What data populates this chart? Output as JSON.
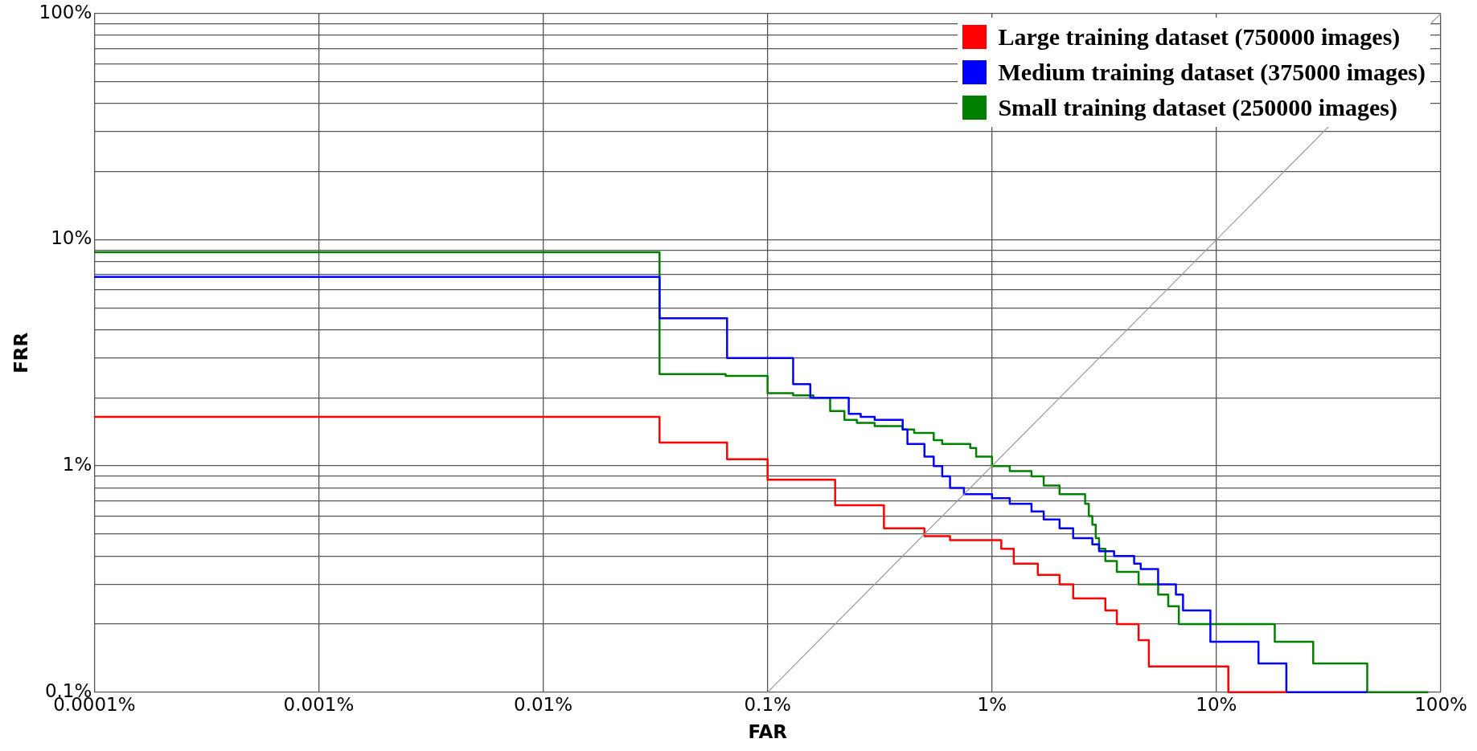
{
  "chart_data": {
    "type": "step",
    "xlabel": "FAR",
    "ylabel": "FRR",
    "log": "xy",
    "grid": true,
    "legend": "top right",
    "marker": "none",
    "line_style": "solid",
    "xlim": [
      0.0001,
      100
    ],
    "ylim": [
      0.1,
      100
    ],
    "xticks": [
      {
        "value": 0.0001,
        "label": "0.0001%"
      },
      {
        "value": 0.001,
        "label": "0.001%"
      },
      {
        "value": 0.01,
        "label": "0.01%"
      },
      {
        "value": 0.1,
        "label": "0.1%"
      },
      {
        "value": 1,
        "label": "1%"
      },
      {
        "value": 10,
        "label": "10%"
      },
      {
        "value": 100,
        "label": "100%"
      }
    ],
    "yticks": [
      {
        "value": 0.1,
        "label": "0.1%"
      },
      {
        "value": 0.2,
        "label": null
      },
      {
        "value": 0.3,
        "label": null
      },
      {
        "value": 0.4,
        "label": null
      },
      {
        "value": 0.5,
        "label": null
      },
      {
        "value": 0.6,
        "label": null
      },
      {
        "value": 0.7,
        "label": null
      },
      {
        "value": 0.8,
        "label": null
      },
      {
        "value": 0.9,
        "label": null
      },
      {
        "value": 1,
        "label": "1%"
      },
      {
        "value": 2,
        "label": null
      },
      {
        "value": 3,
        "label": null
      },
      {
        "value": 4,
        "label": null
      },
      {
        "value": 5,
        "label": null
      },
      {
        "value": 6,
        "label": null
      },
      {
        "value": 7,
        "label": null
      },
      {
        "value": 8,
        "label": null
      },
      {
        "value": 9,
        "label": null
      },
      {
        "value": 10,
        "label": "10%"
      },
      {
        "value": 20,
        "label": null
      },
      {
        "value": 30,
        "label": null
      },
      {
        "value": 40,
        "label": null
      },
      {
        "value": 50,
        "label": null
      },
      {
        "value": 60,
        "label": null
      },
      {
        "value": 70,
        "label": null
      },
      {
        "value": 80,
        "label": null
      },
      {
        "value": 90,
        "label": null
      },
      {
        "value": 100,
        "label": "100%"
      }
    ],
    "series": [
      {
        "type": "line",
        "color": "#999999",
        "x": [
          0.1,
          100
        ],
        "values": [
          0.1,
          100
        ]
      },
      {
        "name": "Large training dataset (750000 images)",
        "color": "#ff0000",
        "x": [
          0.0001,
          0.033,
          0.066,
          0.1,
          0.2,
          0.33,
          0.5,
          0.65,
          1.1,
          1.25,
          1.6,
          2.0,
          2.3,
          3.2,
          3.6,
          4.5,
          5.0,
          11.3,
          20.5
        ],
        "values": [
          1.65,
          1.27,
          1.07,
          0.87,
          0.67,
          0.53,
          0.49,
          0.47,
          0.43,
          0.37,
          0.33,
          0.3,
          0.26,
          0.23,
          0.2,
          0.17,
          0.13,
          0.1,
          0.1
        ]
      },
      {
        "name": "Medium training dataset (375000 images)",
        "color": "#0000ff",
        "x": [
          0.0001,
          0.033,
          0.066,
          0.13,
          0.155,
          0.23,
          0.26,
          0.3,
          0.4,
          0.42,
          0.5,
          0.55,
          0.6,
          0.65,
          0.75,
          1.0,
          1.2,
          1.5,
          1.7,
          2.0,
          2.3,
          2.8,
          3.0,
          3.5,
          4.3,
          4.6,
          5.5,
          6.6,
          7.1,
          9.4,
          15.4,
          20.5,
          47
        ],
        "values": [
          6.85,
          4.5,
          3.0,
          2.3,
          2.0,
          1.7,
          1.65,
          1.6,
          1.45,
          1.25,
          1.1,
          1.0,
          0.9,
          0.8,
          0.75,
          0.72,
          0.68,
          0.63,
          0.58,
          0.53,
          0.48,
          0.45,
          0.42,
          0.4,
          0.37,
          0.35,
          0.3,
          0.27,
          0.23,
          0.167,
          0.134,
          0.1,
          0.1
        ]
      },
      {
        "name": "Small training dataset (250000 images)",
        "color": "#008000",
        "x": [
          0.0001,
          0.033,
          0.065,
          0.1,
          0.13,
          0.16,
          0.19,
          0.22,
          0.25,
          0.3,
          0.4,
          0.45,
          0.55,
          0.6,
          0.8,
          0.85,
          1.0,
          1.2,
          1.5,
          1.7,
          2.0,
          2.6,
          2.7,
          2.8,
          2.9,
          3.0,
          3.2,
          3.6,
          4.5,
          5.5,
          6.1,
          6.8,
          18.2,
          27,
          47,
          88
        ],
        "values": [
          8.8,
          2.55,
          2.5,
          2.1,
          2.05,
          2.0,
          1.75,
          1.6,
          1.55,
          1.5,
          1.45,
          1.4,
          1.3,
          1.25,
          1.2,
          1.1,
          1.0,
          0.95,
          0.9,
          0.82,
          0.75,
          0.68,
          0.6,
          0.55,
          0.48,
          0.43,
          0.38,
          0.34,
          0.3,
          0.27,
          0.24,
          0.2,
          0.167,
          0.134,
          0.1,
          0.1
        ]
      }
    ]
  }
}
